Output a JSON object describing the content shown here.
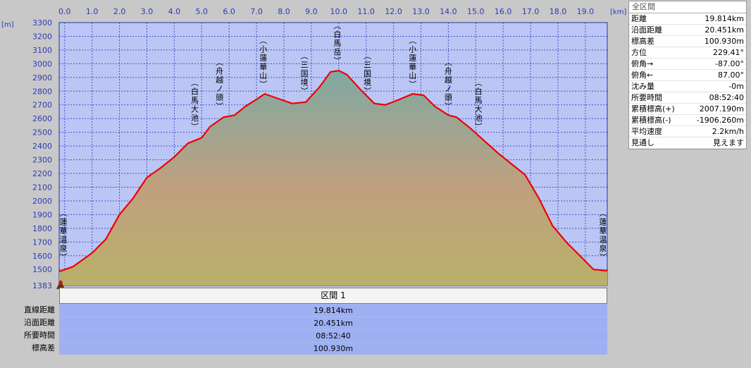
{
  "chart_data": {
    "type": "area",
    "xlabel": "[km]",
    "ylabel": "[m]",
    "xlim": [
      -0.2,
      19.8
    ],
    "ylim": [
      1383,
      3300
    ],
    "x_ticks": [
      "0.0",
      "1.0",
      "2.0",
      "3.0",
      "4.0",
      "5.0",
      "6.0",
      "7.0",
      "8.0",
      "9.0",
      "10.0",
      "11.0",
      "12.0",
      "13.0",
      "14.0",
      "15.0",
      "16.0",
      "17.0",
      "18.0",
      "19.0"
    ],
    "y_ticks": [
      "3300",
      "3200",
      "3100",
      "3000",
      "2900",
      "2800",
      "2700",
      "2600",
      "2500",
      "2400",
      "2300",
      "2200",
      "2100",
      "2000",
      "1900",
      "1800",
      "1700",
      "1600",
      "1500"
    ],
    "y_min_label": "1383",
    "grid": true,
    "x": [
      -0.2,
      0.3,
      1.0,
      1.5,
      2.0,
      2.5,
      3.0,
      3.5,
      4.0,
      4.5,
      5.0,
      5.3,
      5.8,
      6.2,
      6.6,
      7.0,
      7.3,
      7.8,
      8.3,
      8.8,
      9.3,
      9.7,
      10.0,
      10.3,
      10.8,
      11.3,
      11.7,
      12.1,
      12.7,
      13.1,
      13.5,
      14.0,
      14.3,
      14.8,
      15.3,
      15.8,
      16.3,
      16.8,
      17.3,
      17.8,
      18.3,
      18.8,
      19.3,
      19.8
    ],
    "values": [
      1485,
      1520,
      1620,
      1720,
      1900,
      2020,
      2170,
      2240,
      2320,
      2420,
      2460,
      2540,
      2610,
      2625,
      2690,
      2740,
      2780,
      2745,
      2710,
      2720,
      2830,
      2940,
      2950,
      2920,
      2810,
      2710,
      2700,
      2730,
      2780,
      2770,
      2690,
      2625,
      2610,
      2530,
      2440,
      2350,
      2270,
      2190,
      2020,
      1820,
      1700,
      1600,
      1500,
      1490
    ],
    "series": [
      {
        "name": "",
        "color": "#ee0000"
      }
    ],
    "annotations": [
      {
        "x": -0.1,
        "text": "(蓮華温泉)",
        "y": 1540
      },
      {
        "x": 4.75,
        "text": "(白馬大池)",
        "y": 2490
      },
      {
        "x": 5.65,
        "text": "(舟越ノ頭)",
        "y": 2640
      },
      {
        "x": 7.25,
        "text": "(小蓮華山)",
        "y": 2800
      },
      {
        "x": 8.75,
        "text": "(三国境)",
        "y": 2750
      },
      {
        "x": 9.95,
        "text": "(白馬岳)",
        "y": 2970
      },
      {
        "x": 11.05,
        "text": "(三国境)",
        "y": 2750
      },
      {
        "x": 12.7,
        "text": "(小蓮華山)",
        "y": 2800
      },
      {
        "x": 14.0,
        "text": "(舟越ノ頭)",
        "y": 2640
      },
      {
        "x": 15.1,
        "text": "(白馬大池)",
        "y": 2490
      },
      {
        "x": 19.75,
        "text": "(蓮華温泉)",
        "y": 1540
      }
    ]
  },
  "section": {
    "header": "区間 1",
    "rows": [
      {
        "label": "直線距離",
        "value": "19.814km"
      },
      {
        "label": "沿面距離",
        "value": "20.451km"
      },
      {
        "label": "所要時間",
        "value": "08:52:40"
      },
      {
        "label": "標高差",
        "value": "100.930m"
      }
    ]
  },
  "stats": {
    "title": "全区間",
    "rows": [
      {
        "key": "距離",
        "value": "19.814km"
      },
      {
        "key": "沿面距離",
        "value": "20.451km"
      },
      {
        "key": "標高差",
        "value": "100.930m"
      },
      {
        "key": "方位",
        "value": "229.41°"
      },
      {
        "key": "俯角→",
        "value": "-87.00°"
      },
      {
        "key": "俯角←",
        "value": "87.00°"
      },
      {
        "key": "沈み量",
        "value": "-0m"
      },
      {
        "key": "所要時間",
        "value": "08:52:40"
      },
      {
        "key": "累積標高(+)",
        "value": "2007.190m"
      },
      {
        "key": "累積標高(-)",
        "value": "-1906.260m"
      },
      {
        "key": "平均速度",
        "value": "2.2km/h"
      },
      {
        "key": "見通し",
        "value": "見えます"
      }
    ]
  }
}
